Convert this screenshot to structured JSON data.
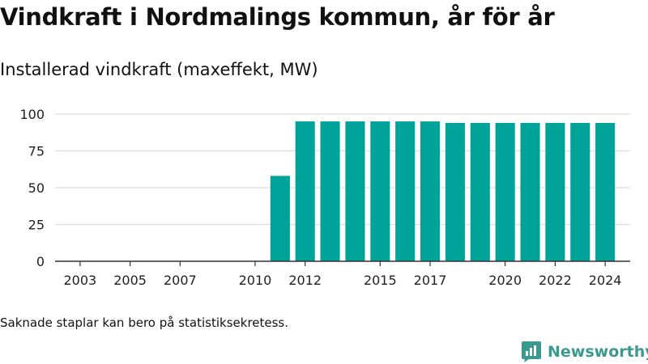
{
  "title": "Vindkraft i Nordmalings kommun, år för år",
  "subtitle": "Installerad vindkraft (maxeffekt, MW)",
  "footnote": "Saknade staplar kan bero på statistiksekretess.",
  "brand": {
    "name": "Newsworthy",
    "color": "#3b9a8f"
  },
  "colors": {
    "bar": "#00a39a",
    "grid": "#dddddd",
    "axis": "#333333"
  },
  "chart_data": {
    "type": "bar",
    "title": "Vindkraft i Nordmalings kommun, år för år",
    "subtitle": "Installerad vindkraft (maxeffekt, MW)",
    "xlabel": "",
    "ylabel": "",
    "grid": true,
    "xlim": [
      2002,
      2025
    ],
    "ylim": [
      0,
      100
    ],
    "yticks": [
      0,
      25,
      50,
      75,
      100
    ],
    "xticks": [
      2003,
      2005,
      2007,
      2010,
      2012,
      2015,
      2017,
      2020,
      2022,
      2024
    ],
    "x": [
      2011,
      2012,
      2013,
      2014,
      2015,
      2016,
      2017,
      2018,
      2019,
      2020,
      2021,
      2022,
      2023,
      2024
    ],
    "values": [
      58,
      95,
      95,
      95,
      95,
      95,
      95,
      94,
      94,
      94,
      94,
      94,
      94,
      94
    ]
  }
}
